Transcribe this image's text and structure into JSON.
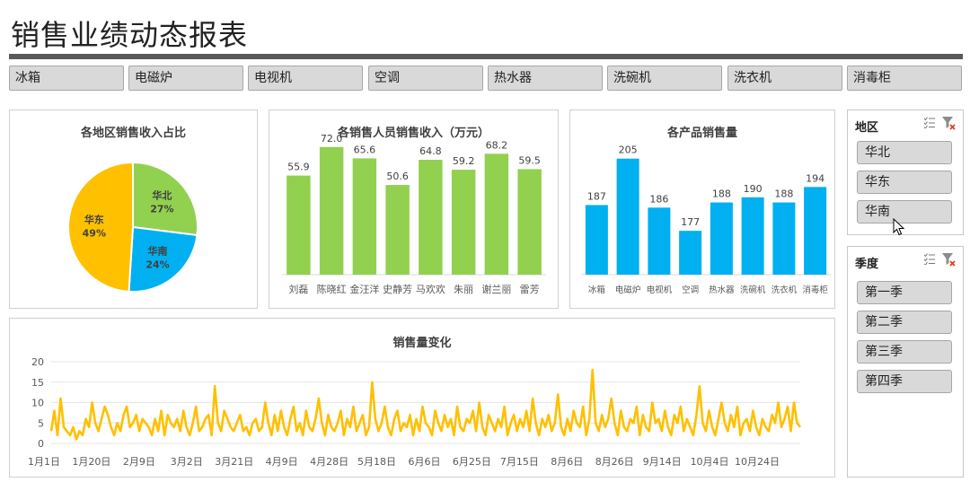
{
  "header": {
    "title": "销售业绩动态报表"
  },
  "products": [
    "冰箱",
    "电磁炉",
    "电视机",
    "空调",
    "热水器",
    "洗碗机",
    "洗衣机",
    "消毒柜"
  ],
  "colors": {
    "green": "#92d050",
    "blue": "#00b0f0",
    "orange": "#ffc000",
    "title_rule": "#595959"
  },
  "region_slicer": {
    "title": "地区",
    "items": [
      "华北",
      "华东",
      "华南"
    ],
    "icons": [
      "multi-select-icon",
      "clear-filter-icon"
    ]
  },
  "season_slicer": {
    "title": "季度",
    "items": [
      "第一季",
      "第二季",
      "第三季",
      "第四季"
    ],
    "icons": [
      "multi-select-icon",
      "clear-filter-icon"
    ]
  },
  "charts": {
    "pie": {
      "title": "各地区销售收入占比",
      "chart_data": {
        "type": "pie",
        "slices": [
          {
            "name": "华北",
            "value": 27,
            "label": "27%",
            "color": "#92d050"
          },
          {
            "name": "华南",
            "value": 24,
            "label": "24%",
            "color": "#00b0f0"
          },
          {
            "name": "华东",
            "value": 49,
            "label": "49%",
            "color": "#ffc000"
          }
        ]
      }
    },
    "sales_people": {
      "title": "各销售人员销售收入（万元）",
      "chart_data": {
        "type": "bar",
        "categories": [
          "刘磊",
          "陈晓红",
          "金汪洋",
          "史静芳",
          "马欢欢",
          "朱丽",
          "谢兰丽",
          "雷芳"
        ],
        "values": [
          55.9,
          72.0,
          65.6,
          50.6,
          64.8,
          59.2,
          68.2,
          59.5
        ],
        "labels": [
          "55.9",
          "72.0",
          "65.6",
          "50.6",
          "64.8",
          "59.2",
          "68.2",
          "59.5"
        ],
        "color": "#92d050",
        "ylim": [
          0,
          80
        ]
      }
    },
    "products_qty": {
      "title": "各产品销售量",
      "chart_data": {
        "type": "bar",
        "categories": [
          "冰箱",
          "电磁炉",
          "电视机",
          "空调",
          "热水器",
          "洗碗机",
          "洗衣机",
          "消毒柜"
        ],
        "values": [
          187,
          205,
          186,
          177,
          188,
          190,
          188,
          194
        ],
        "labels": [
          "187",
          "205",
          "186",
          "177",
          "188",
          "190",
          "188",
          "194"
        ],
        "color": "#00b0f0",
        "ylim": [
          160,
          215
        ]
      }
    },
    "line": {
      "title": "销售量变化",
      "chart_data": {
        "type": "line",
        "color": "#ffc000",
        "ylim": [
          0,
          20
        ],
        "yticks": [
          "0",
          "5",
          "10",
          "15",
          "20"
        ],
        "xticks": [
          "1月1日",
          "1月20日",
          "2月9日",
          "3月2日",
          "3月21日",
          "4月9日",
          "4月28日",
          "5月18日",
          "6月6日",
          "6月25日",
          "7月15日",
          "8月6日",
          "8月26日",
          "9月14日",
          "10月4日",
          "10月24日"
        ],
        "values": [
          3,
          8,
          2,
          11,
          4,
          3,
          2,
          4,
          1,
          3,
          2,
          6,
          4,
          10,
          5,
          3,
          6,
          9,
          7,
          4,
          2,
          5,
          3,
          7,
          9,
          4,
          5,
          7,
          3,
          6,
          5,
          4,
          2,
          6,
          3,
          8,
          2,
          7,
          5,
          4,
          6,
          3,
          8,
          4,
          2,
          5,
          9,
          3,
          4,
          6,
          7,
          2,
          14,
          5,
          3,
          8,
          6,
          4,
          3,
          5,
          7,
          3,
          4,
          2,
          5,
          6,
          3,
          4,
          10,
          5,
          2,
          7,
          3,
          8,
          4,
          2,
          6,
          9,
          3,
          5,
          2,
          8,
          4,
          3,
          6,
          11,
          5,
          2,
          7,
          4,
          3,
          5,
          8,
          2,
          6,
          4,
          9,
          3,
          5,
          7,
          2,
          4,
          15,
          6,
          3,
          5,
          9,
          4,
          2,
          6,
          8,
          3,
          5,
          4,
          7,
          2,
          6,
          3,
          9,
          5,
          4,
          2,
          8,
          5,
          3,
          7,
          4,
          6,
          2,
          9,
          4,
          3,
          6,
          5,
          8,
          3,
          10,
          4,
          2,
          7,
          5,
          3,
          6,
          4,
          9,
          2,
          5,
          7,
          3,
          6,
          4,
          8,
          3,
          11,
          5,
          2,
          6,
          4,
          7,
          3,
          5,
          12,
          4,
          2,
          6,
          3,
          8,
          5,
          4,
          9,
          2,
          6,
          18,
          5,
          3,
          7,
          4,
          6,
          11,
          5,
          2,
          8,
          4,
          3,
          6,
          5,
          9,
          2,
          7,
          4,
          3,
          10,
          5,
          6,
          3,
          8,
          4,
          2,
          7,
          5,
          9,
          3,
          6,
          4,
          2,
          7,
          14,
          5,
          3,
          8,
          4,
          2,
          6,
          10,
          5,
          3,
          7,
          4,
          9,
          2,
          5,
          6,
          3,
          8,
          4,
          2,
          6,
          4,
          3,
          7,
          5,
          10,
          4,
          6,
          9,
          3,
          10,
          5,
          4
        ]
      }
    }
  }
}
